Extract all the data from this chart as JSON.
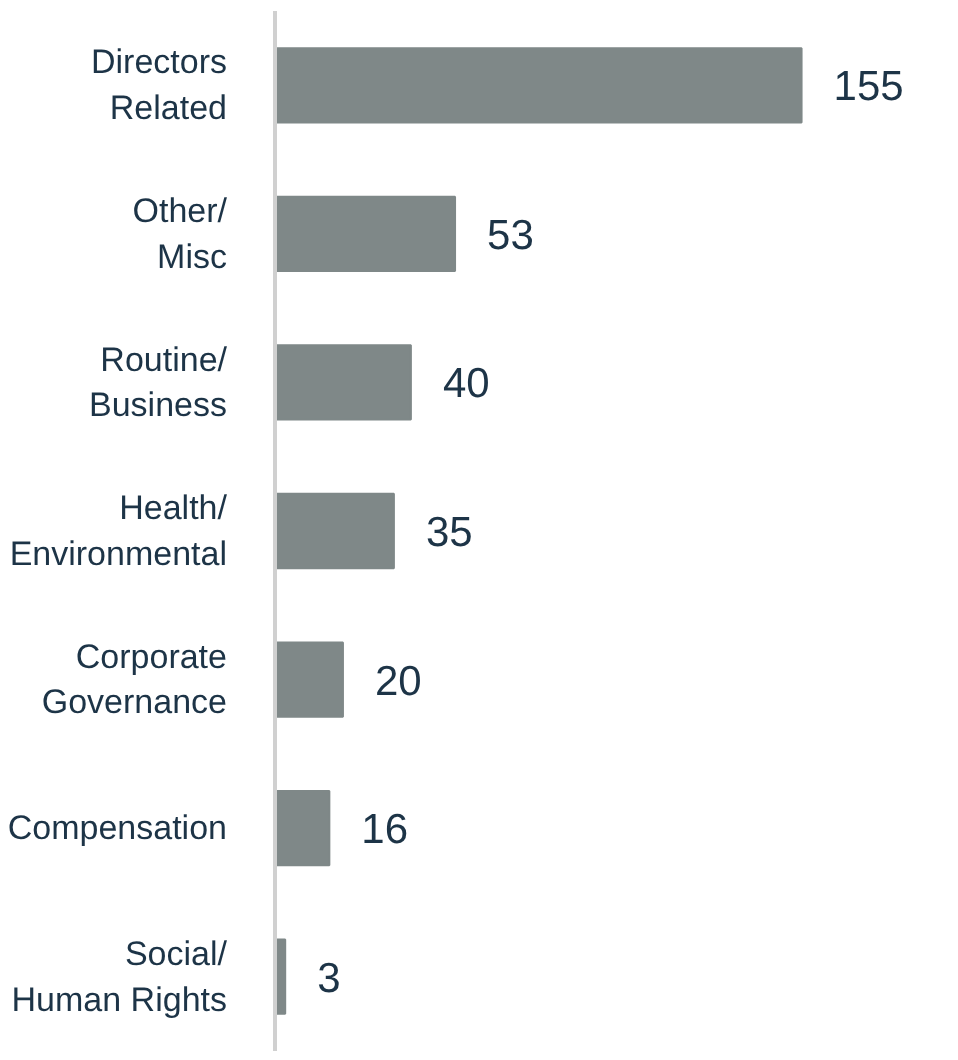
{
  "chart_data": {
    "type": "bar",
    "orientation": "horizontal",
    "categories": [
      "Directors\nRelated",
      "Other/\nMisc",
      "Routine/\nBusiness",
      "Health/\nEnvironmental",
      "Corporate\nGovernance",
      "Compensation",
      "Social/\nHuman Rights"
    ],
    "values": [
      155,
      53,
      40,
      35,
      20,
      16,
      3
    ],
    "color": "#7f8888",
    "data_labels": true
  }
}
